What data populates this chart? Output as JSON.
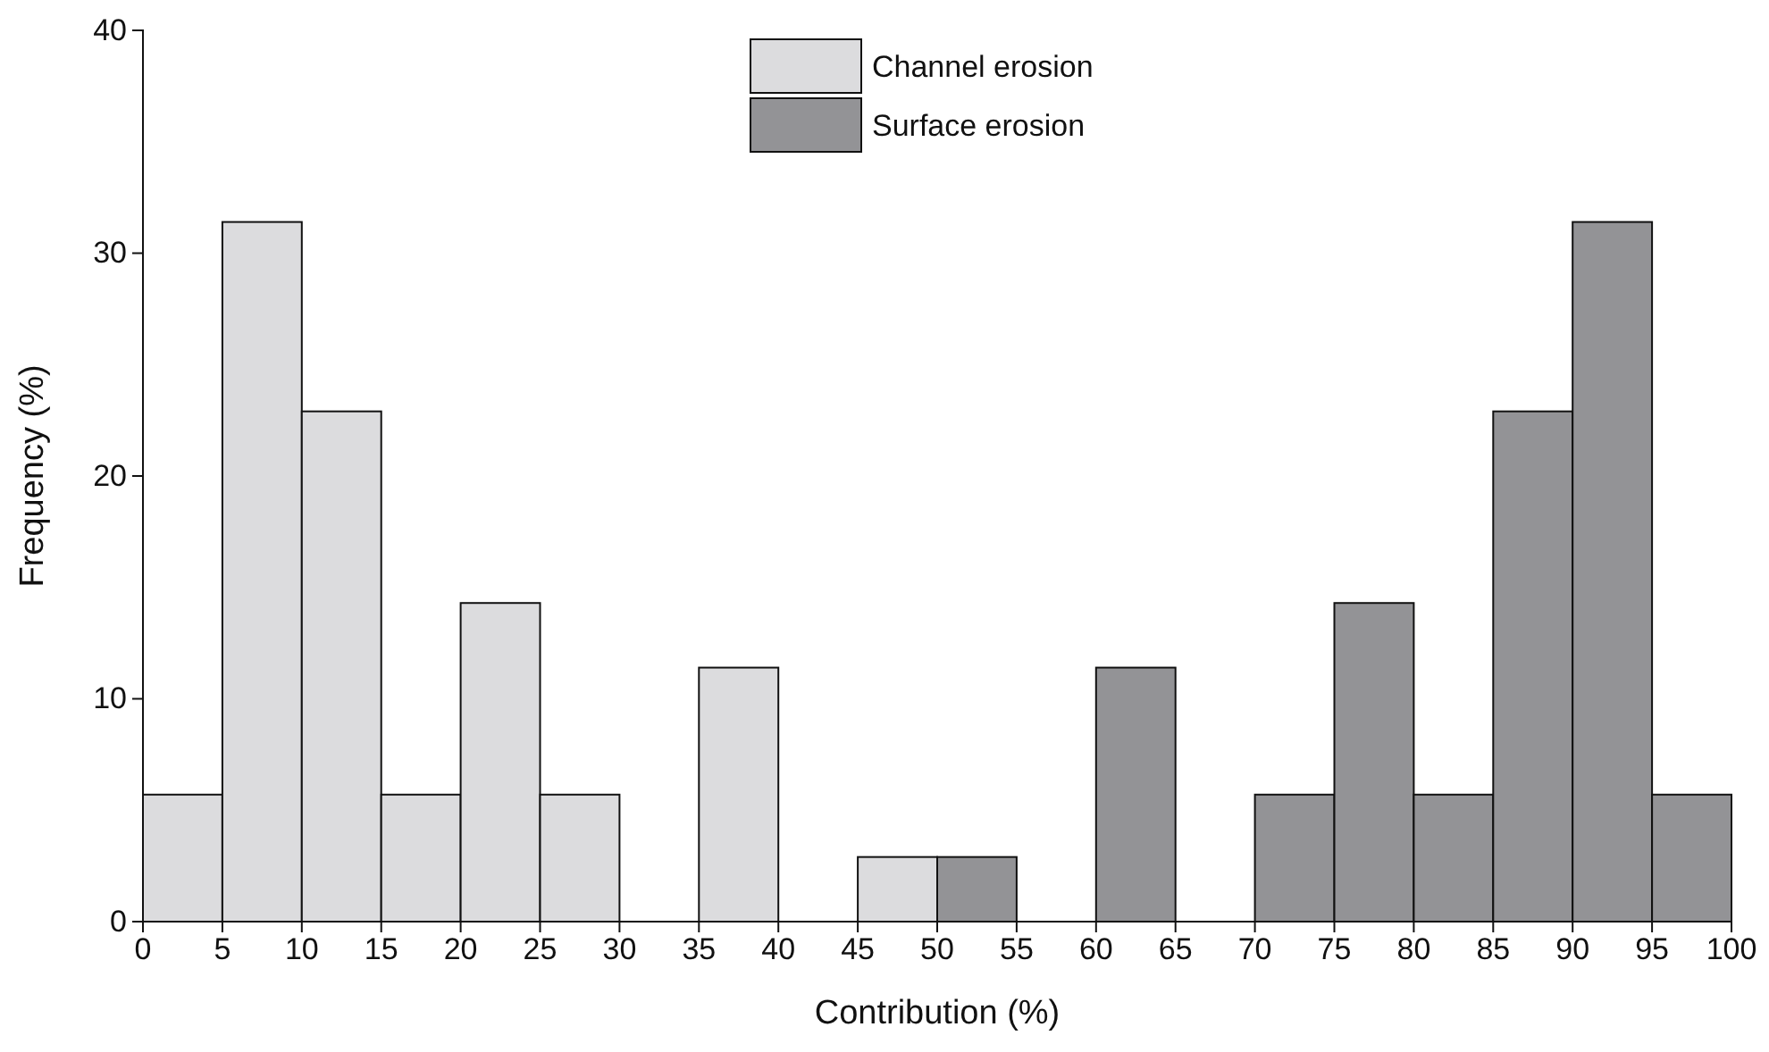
{
  "chart_data": {
    "type": "histogram",
    "xlabel": "Contribution (%)",
    "ylabel": "Frequency (%)",
    "bins": [
      0,
      5,
      10,
      15,
      20,
      25,
      30,
      35,
      40,
      45,
      50,
      55,
      60,
      65,
      70,
      75,
      80,
      85,
      90,
      95,
      100
    ],
    "series": [
      {
        "name": "Channel erosion",
        "color": "#dcdcde",
        "values": [
          5.7,
          31.4,
          22.9,
          5.7,
          14.3,
          5.7,
          0,
          11.4,
          0,
          2.9,
          null,
          null,
          null,
          null,
          null,
          null,
          null,
          null,
          null,
          null
        ]
      },
      {
        "name": "Surface erosion",
        "color": "#939396",
        "values": [
          null,
          null,
          null,
          null,
          null,
          null,
          null,
          null,
          null,
          null,
          2.9,
          0,
          11.4,
          0,
          5.7,
          14.3,
          5.7,
          22.9,
          31.4,
          5.7
        ]
      }
    ],
    "xlim": [
      0,
      100
    ],
    "xticks": [
      0,
      5,
      10,
      15,
      20,
      25,
      30,
      35,
      40,
      45,
      50,
      55,
      60,
      65,
      70,
      75,
      80,
      85,
      90,
      95,
      100
    ],
    "ylim": [
      0,
      40
    ],
    "yticks": [
      0,
      10,
      20,
      30,
      40
    ],
    "grid": false,
    "legend": "top"
  }
}
